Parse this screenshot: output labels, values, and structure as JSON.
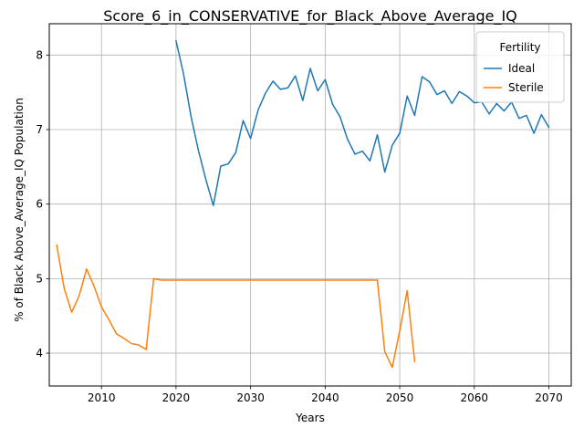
{
  "chart_data": {
    "type": "line",
    "title": "Score_6_in_CONSERVATIVE_for_Black_Above_Average_IQ",
    "xlabel": "Years",
    "ylabel": "% of Black Above_Average_IQ Population",
    "xlim": [
      2003,
      2073
    ],
    "ylim": [
      3.56,
      8.42
    ],
    "xticks": [
      2010,
      2020,
      2030,
      2040,
      2050,
      2060,
      2070
    ],
    "yticks": [
      4,
      5,
      6,
      7,
      8
    ],
    "grid": true,
    "legend": {
      "title": "Fertility",
      "placement": "top-right"
    },
    "series": [
      {
        "name": "Ideal",
        "color": "#1f77b4",
        "x": [
          2020,
          2021,
          2022,
          2023,
          2024,
          2025,
          2026,
          2027,
          2028,
          2029,
          2030,
          2031,
          2032,
          2033,
          2034,
          2035,
          2036,
          2037,
          2038,
          2039,
          2040,
          2041,
          2042,
          2043,
          2044,
          2045,
          2046,
          2047,
          2048,
          2049,
          2050,
          2051,
          2052,
          2053,
          2054,
          2055,
          2056,
          2057,
          2058,
          2059,
          2060,
          2061,
          2062,
          2063,
          2064,
          2065,
          2066,
          2067,
          2068,
          2069,
          2070
        ],
        "y": [
          8.19,
          7.75,
          7.18,
          6.72,
          6.33,
          5.98,
          6.51,
          6.54,
          6.69,
          7.12,
          6.88,
          7.26,
          7.49,
          7.65,
          7.54,
          7.56,
          7.72,
          7.39,
          7.82,
          7.52,
          7.67,
          7.34,
          7.17,
          6.87,
          6.67,
          6.71,
          6.58,
          6.93,
          6.43,
          6.79,
          6.95,
          7.45,
          7.19,
          7.71,
          7.64,
          7.47,
          7.52,
          7.35,
          7.51,
          7.45,
          7.36,
          7.37,
          7.21,
          7.35,
          7.25,
          7.37,
          7.15,
          7.19,
          6.95,
          7.2,
          7.03
        ]
      },
      {
        "name": "Sterile",
        "color": "#ff7f0e",
        "x": [
          2004,
          2005,
          2006,
          2007,
          2008,
          2009,
          2010,
          2011,
          2012,
          2013,
          2014,
          2015,
          2016,
          2017,
          2018,
          2019,
          2020,
          2025,
          2030,
          2035,
          2040,
          2045,
          2047,
          2048,
          2049,
          2050,
          2051,
          2052
        ],
        "y": [
          5.45,
          4.87,
          4.55,
          4.77,
          5.13,
          4.9,
          4.62,
          4.45,
          4.26,
          4.2,
          4.13,
          4.11,
          4.05,
          5.0,
          4.98,
          4.98,
          4.98,
          4.98,
          4.98,
          4.98,
          4.98,
          4.98,
          4.98,
          4.02,
          3.81,
          4.3,
          4.84,
          3.89
        ]
      }
    ]
  }
}
